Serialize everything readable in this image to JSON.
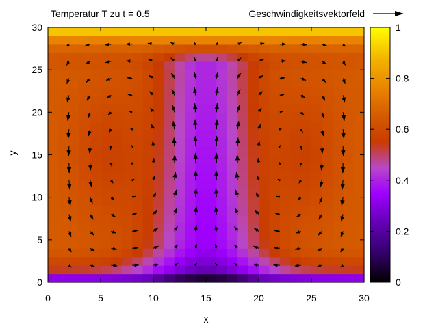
{
  "chart_data": {
    "type": "heatmap",
    "title": "Temperatur T zu t = 0.5",
    "overlay": "vector-field",
    "legend": {
      "label": "Geschwindigkeitsvektorfeld",
      "position": "top-right"
    },
    "xlabel": "x",
    "ylabel": "y",
    "xlim": [
      0,
      30
    ],
    "ylim": [
      0,
      30
    ],
    "xticks": [
      0,
      5,
      10,
      15,
      20,
      25,
      30
    ],
    "yticks": [
      0,
      5,
      10,
      15,
      20,
      25,
      30
    ],
    "colorbar": {
      "range": [
        0,
        1
      ],
      "ticks": [
        "0",
        "0.2",
        "0.4",
        "0.6",
        "0.8",
        "1"
      ],
      "colormap": [
        "#000000",
        "#6c00c0",
        "#a000ff",
        "#b848c8",
        "#c83c00",
        "#d45a00",
        "#e88000",
        "#f3b000",
        "#ffff00"
      ]
    },
    "field_description": {
      "top_boundary_T": 1,
      "bottom_boundary_T": 0,
      "plume_center_x": 15,
      "flow": "two counter-rotating convection cells; upflow at center x=15, downflow along side walls"
    }
  }
}
